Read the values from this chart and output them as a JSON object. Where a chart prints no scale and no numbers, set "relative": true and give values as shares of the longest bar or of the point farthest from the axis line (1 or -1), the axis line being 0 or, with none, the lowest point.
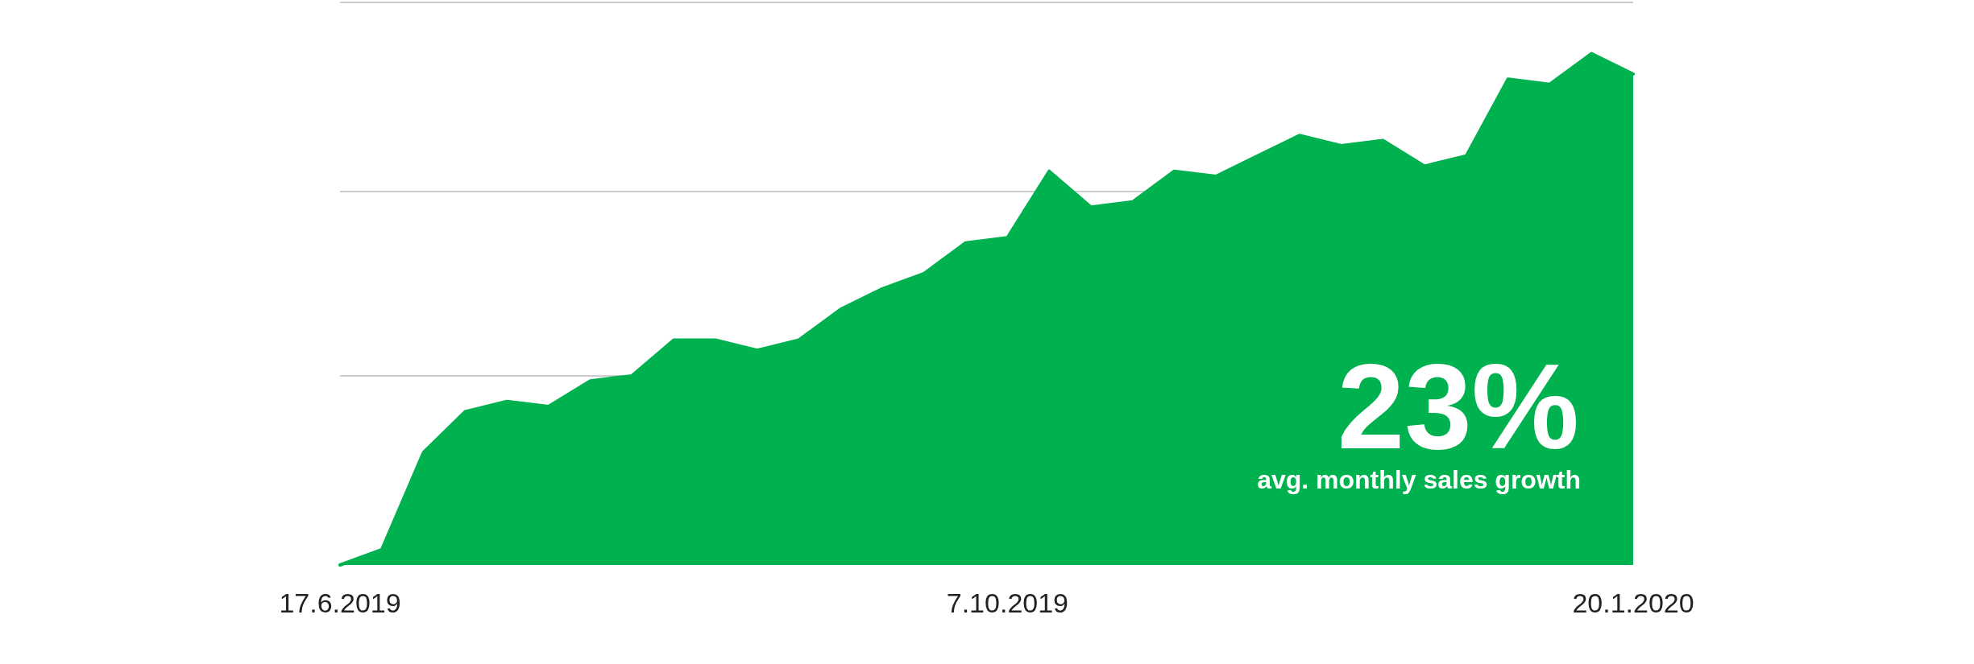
{
  "chart_data": {
    "type": "area",
    "relative": true,
    "color": "#00b14f",
    "ref_lines": [
      {
        "axis": "y",
        "value": 0.37,
        "color": "#cccccc"
      },
      {
        "axis": "y",
        "value": 0.73,
        "color": "#cccccc"
      },
      {
        "axis": "y",
        "value": 1.1,
        "color": "#cccccc"
      }
    ],
    "marker": "none",
    "line_style": "solid",
    "x": [
      "2019-06-17",
      "2019-06-24",
      "2019-07-01",
      "2019-07-08",
      "2019-07-15",
      "2019-07-22",
      "2019-07-29",
      "2019-08-05",
      "2019-08-12",
      "2019-08-19",
      "2019-08-26",
      "2019-09-02",
      "2019-09-09",
      "2019-09-16",
      "2019-09-23",
      "2019-09-30",
      "2019-10-07",
      "2019-10-14",
      "2019-10-21",
      "2019-10-28",
      "2019-11-04",
      "2019-11-11",
      "2019-11-18",
      "2019-11-25",
      "2019-12-02",
      "2019-12-09",
      "2019-12-16",
      "2019-12-23",
      "2019-12-30",
      "2020-01-06",
      "2020-01-13",
      "2020-01-20"
    ],
    "values": [
      0,
      0.03,
      0.22,
      0.3,
      0.32,
      0.31,
      0.36,
      0.37,
      0.44,
      0.44,
      0.42,
      0.44,
      0.5,
      0.54,
      0.57,
      0.63,
      0.64,
      0.77,
      0.7,
      0.71,
      0.77,
      0.76,
      0.8,
      0.84,
      0.82,
      0.83,
      0.78,
      0.8,
      0.95,
      0.94,
      1,
      0.96
    ],
    "xlim": [
      "2019-06-17",
      "2020-01-20"
    ],
    "xticks": [
      {
        "value": "2019-06-17",
        "label": "17.6.2019"
      },
      {
        "value": "2019-10-07",
        "label": "7.10.2019"
      },
      {
        "value": "2020-01-20",
        "label": "20.1.2020"
      }
    ],
    "annotations": [
      "23%",
      "avg. monthly sales growth"
    ]
  }
}
